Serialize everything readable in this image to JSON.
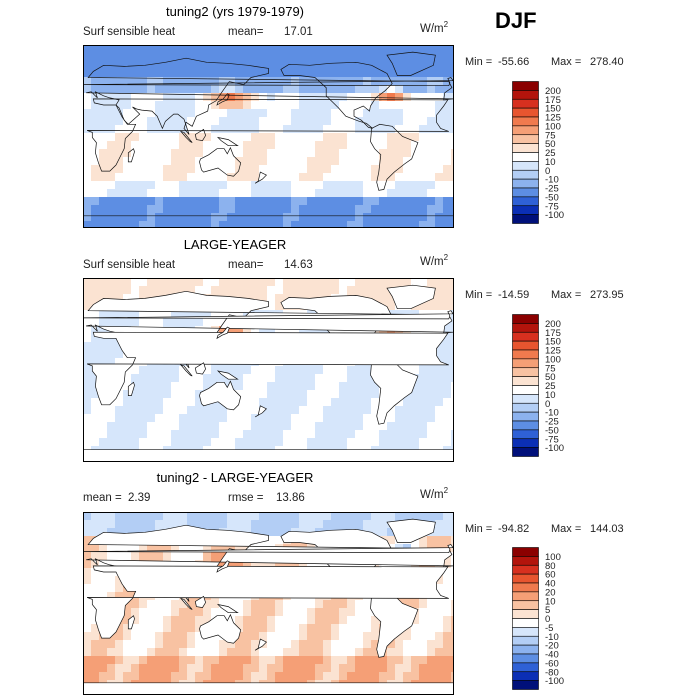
{
  "season": "DJF",
  "panels": [
    {
      "title": "tuning2 (yrs 1979-1979)",
      "left_label": "Surf sensible heat",
      "stat_label": "mean=",
      "stat_value": "17.01",
      "units": "W/m",
      "units_exp": "2",
      "min_label": "Min =",
      "min_value": "-55.66",
      "max_label": "Max =",
      "max_value": "278.40",
      "colorbar_levels": [
        "200",
        "175",
        "150",
        "125",
        "100",
        "75",
        "50",
        "25",
        "10",
        "0",
        "-10",
        "-25",
        "-50",
        "-75",
        "-100"
      ],
      "colorbar_colors": [
        "#8b0000",
        "#b3140c",
        "#d7301f",
        "#e8552f",
        "#f07a4e",
        "#f59f76",
        "#f8c2a2",
        "#fbe3d2",
        "#ffffff",
        "#d6e6fb",
        "#b3cef5",
        "#8cb2ee",
        "#5d8ee3",
        "#2f61d6",
        "#0b2fb5",
        "#00107a"
      ]
    },
    {
      "title": "LARGE-YEAGER",
      "left_label": "Surf sensible heat",
      "stat_label": "mean=",
      "stat_value": "14.63",
      "units": "W/m",
      "units_exp": "2",
      "min_label": "Min =",
      "min_value": "-14.59",
      "max_label": "Max =",
      "max_value": "273.95",
      "colorbar_levels": [
        "200",
        "175",
        "150",
        "125",
        "100",
        "75",
        "50",
        "25",
        "10",
        "0",
        "-10",
        "-25",
        "-50",
        "-75",
        "-100"
      ],
      "colorbar_colors": [
        "#8b0000",
        "#b3140c",
        "#d7301f",
        "#e8552f",
        "#f07a4e",
        "#f59f76",
        "#f8c2a2",
        "#fbe3d2",
        "#ffffff",
        "#d6e6fb",
        "#b3cef5",
        "#8cb2ee",
        "#5d8ee3",
        "#2f61d6",
        "#0b2fb5",
        "#00107a"
      ]
    },
    {
      "title": "tuning2 - LARGE-YEAGER",
      "left_label": "mean =",
      "left_value": "2.39",
      "stat_label": "rmse =",
      "stat_value": "13.86",
      "units": "W/m",
      "units_exp": "2",
      "min_label": "Min =",
      "min_value": "-94.82",
      "max_label": "Max =",
      "max_value": "144.03",
      "colorbar_levels": [
        "100",
        "80",
        "60",
        "40",
        "20",
        "10",
        "5",
        "0",
        "-5",
        "-10",
        "-20",
        "-40",
        "-60",
        "-80",
        "-100"
      ],
      "colorbar_colors": [
        "#8b0000",
        "#b3140c",
        "#d7301f",
        "#e8552f",
        "#f07a4e",
        "#f59f76",
        "#f8c2a2",
        "#fbe3d2",
        "#ffffff",
        "#d6e6fb",
        "#b3cef5",
        "#8cb2ee",
        "#5d8ee3",
        "#2f61d6",
        "#0b2fb5",
        "#00107a"
      ]
    }
  ],
  "chart_data": [
    {
      "type": "heatmap",
      "title": "tuning2 (yrs 1979-1979)",
      "variable": "Surf sensible heat",
      "units": "W/m2",
      "mean": 17.01,
      "min": -55.66,
      "max": 278.4,
      "contour_levels": [
        -100,
        -75,
        -50,
        -25,
        -10,
        0,
        10,
        25,
        50,
        75,
        100,
        125,
        150,
        175,
        200
      ]
    },
    {
      "type": "heatmap",
      "title": "LARGE-YEAGER",
      "variable": "Surf sensible heat",
      "units": "W/m2",
      "mean": 14.63,
      "min": -14.59,
      "max": 273.95,
      "contour_levels": [
        -100,
        -75,
        -50,
        -25,
        -10,
        0,
        10,
        25,
        50,
        75,
        100,
        125,
        150,
        175,
        200
      ]
    },
    {
      "type": "heatmap",
      "title": "tuning2 - LARGE-YEAGER",
      "units": "W/m2",
      "mean": 2.39,
      "rmse": 13.86,
      "min": -94.82,
      "max": 144.03,
      "contour_levels": [
        -100,
        -80,
        -60,
        -40,
        -20,
        -10,
        -5,
        0,
        5,
        10,
        20,
        40,
        60,
        80,
        100
      ]
    }
  ]
}
